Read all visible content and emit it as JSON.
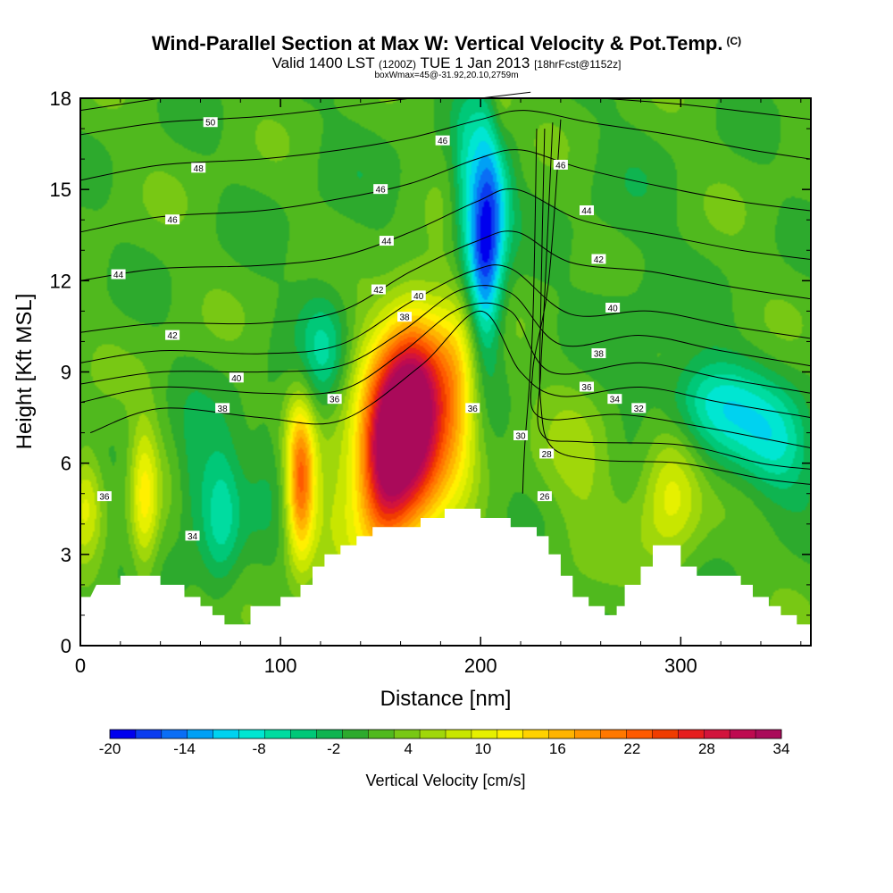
{
  "header": {
    "title": "Wind-Parallel Section at Max W: Vertical Velocity & Pot.Temp.",
    "title_mark": "(C)",
    "valid_prefix": "Valid 1400 LST",
    "valid_utc": "(1200Z)",
    "valid_date": "TUE 1 Jan 2013",
    "forecast": "[18hrFcst@1152z]",
    "box_info": "boxWmax=45@-31.92,20.10,2759m"
  },
  "chart_data": {
    "type": "heatmap",
    "title": "Wind-Parallel Section at Max W: Vertical Velocity & Pot.Temp.",
    "xlabel": "Distance [nm]",
    "ylabel": "Height [Kft MSL]",
    "xlim": [
      0,
      365
    ],
    "ylim": [
      0,
      18
    ],
    "x_ticks": [
      "0",
      "100",
      "200",
      "300"
    ],
    "y_ticks": [
      "0",
      "3",
      "6",
      "9",
      "12",
      "15",
      "18"
    ],
    "colorbar": {
      "label": "Vertical Velocity [cm/s]",
      "ticks": [
        "-20",
        "-14",
        "-8",
        "-2",
        "4",
        "10",
        "16",
        "22",
        "28",
        "34"
      ],
      "range": [
        -20,
        34
      ],
      "colors": [
        "#0000ee",
        "#0a3cf0",
        "#0a6ef5",
        "#00a0f5",
        "#00d2f0",
        "#00e6d2",
        "#00dca0",
        "#00c878",
        "#0fb450",
        "#2daa2d",
        "#50b91e",
        "#78c814",
        "#a0d70a",
        "#c8e600",
        "#e6f000",
        "#fff000",
        "#ffd200",
        "#ffb400",
        "#ff9600",
        "#ff7800",
        "#ff5a00",
        "#f03c00",
        "#e61e1e",
        "#d2143c",
        "#be0a50",
        "#aa0a5a"
      ]
    },
    "terrain_kft": [
      [
        0,
        1.6
      ],
      [
        5,
        1.6
      ],
      [
        8,
        2.0
      ],
      [
        20,
        2.0
      ],
      [
        20,
        2.3
      ],
      [
        40,
        2.3
      ],
      [
        40,
        2.0
      ],
      [
        52,
        2.0
      ],
      [
        52,
        1.6
      ],
      [
        60,
        1.6
      ],
      [
        60,
        1.3
      ],
      [
        66,
        1.3
      ],
      [
        66,
        1.0
      ],
      [
        72,
        1.0
      ],
      [
        72,
        0.7
      ],
      [
        85,
        0.7
      ],
      [
        85,
        1.3
      ],
      [
        100,
        1.3
      ],
      [
        100,
        1.6
      ],
      [
        110,
        1.6
      ],
      [
        110,
        2.0
      ],
      [
        116,
        2.0
      ],
      [
        116,
        2.6
      ],
      [
        122,
        2.6
      ],
      [
        122,
        3.0
      ],
      [
        130,
        3.0
      ],
      [
        130,
        3.3
      ],
      [
        138,
        3.3
      ],
      [
        138,
        3.6
      ],
      [
        146,
        3.6
      ],
      [
        146,
        3.9
      ],
      [
        170,
        3.9
      ],
      [
        170,
        4.2
      ],
      [
        182,
        4.2
      ],
      [
        182,
        4.5
      ],
      [
        200,
        4.5
      ],
      [
        200,
        4.2
      ],
      [
        215,
        4.2
      ],
      [
        215,
        3.9
      ],
      [
        228,
        3.9
      ],
      [
        228,
        3.6
      ],
      [
        234,
        3.6
      ],
      [
        234,
        3.0
      ],
      [
        240,
        3.0
      ],
      [
        240,
        2.3
      ],
      [
        246,
        2.3
      ],
      [
        246,
        1.6
      ],
      [
        254,
        1.6
      ],
      [
        254,
        1.3
      ],
      [
        262,
        1.3
      ],
      [
        262,
        1.0
      ],
      [
        268,
        1.0
      ],
      [
        268,
        1.3
      ],
      [
        272,
        1.3
      ],
      [
        272,
        2.0
      ],
      [
        280,
        2.0
      ],
      [
        280,
        2.6
      ],
      [
        286,
        2.6
      ],
      [
        286,
        3.3
      ],
      [
        300,
        3.3
      ],
      [
        300,
        2.6
      ],
      [
        308,
        2.6
      ],
      [
        308,
        2.3
      ],
      [
        330,
        2.3
      ],
      [
        330,
        2.0
      ],
      [
        336,
        2.0
      ],
      [
        336,
        1.6
      ],
      [
        344,
        1.6
      ],
      [
        344,
        1.3
      ],
      [
        350,
        1.3
      ],
      [
        350,
        1.0
      ],
      [
        358,
        1.0
      ],
      [
        358,
        0.7
      ],
      [
        365,
        0.7
      ]
    ],
    "updrafts": [
      [
        167,
        7.6,
        11,
        2.3,
        33
      ],
      [
        152,
        6.1,
        9,
        2.0,
        22
      ],
      [
        188,
        8.3,
        9,
        2.2,
        13
      ],
      [
        110,
        5.4,
        5,
        1.8,
        19
      ],
      [
        32,
        4.8,
        5,
        1.8,
        10
      ],
      [
        295,
        5.2,
        11,
        1.6,
        10
      ],
      [
        3,
        4.8,
        6,
        1.3,
        8
      ],
      [
        250,
        6.0,
        14,
        2.5,
        4
      ],
      [
        210,
        17.5,
        5,
        1.5,
        9
      ],
      [
        140,
        6.2,
        18,
        3.0,
        7
      ]
    ],
    "downdrafts": [
      [
        202,
        13.0,
        6,
        2.5,
        -19
      ],
      [
        209,
        16.0,
        6,
        2.0,
        -9
      ],
      [
        70,
        4.3,
        7,
        1.8,
        -8
      ],
      [
        122,
        9.5,
        9,
        1.5,
        -8
      ],
      [
        330,
        7.2,
        22,
        1.3,
        -7
      ],
      [
        312,
        8.2,
        16,
        1.0,
        -6
      ],
      [
        192,
        15.0,
        5,
        2.0,
        -6
      ],
      [
        350,
        6.3,
        12,
        1.2,
        -5
      ],
      [
        56,
        5.5,
        6,
        1.6,
        -4
      ],
      [
        95,
        6.3,
        8,
        1.8,
        -3
      ],
      [
        270,
        11.0,
        20,
        4.0,
        -2
      ],
      [
        140,
        14.0,
        30,
        3.0,
        -1
      ]
    ],
    "isentropes": [
      {
        "label": "26",
        "points": [
          [
            228,
            17.0
          ],
          [
            226,
            10.5
          ],
          [
            222,
            6.5
          ],
          [
            221,
            5.0
          ]
        ]
      },
      {
        "label": "28",
        "points": [
          [
            232,
            17.0
          ],
          [
            230,
            11.0
          ],
          [
            230,
            8.0
          ],
          [
            236,
            6.5
          ],
          [
            260,
            6.1
          ],
          [
            300,
            6.0
          ],
          [
            340,
            5.5
          ],
          [
            365,
            5.3
          ]
        ]
      },
      {
        "label": "30",
        "points": [
          [
            236,
            17.2
          ],
          [
            232,
            11.5
          ],
          [
            230,
            9.0
          ],
          [
            230,
            7.0
          ],
          [
            250,
            6.7
          ],
          [
            300,
            6.6
          ],
          [
            340,
            6.0
          ],
          [
            365,
            5.8
          ]
        ]
      },
      {
        "label": "32",
        "points": [
          [
            240,
            17.3
          ],
          [
            234,
            12.0
          ],
          [
            226,
            9.0
          ],
          [
            230,
            7.5
          ],
          [
            270,
            7.6
          ],
          [
            310,
            7.2
          ],
          [
            365,
            6.5
          ]
        ]
      },
      {
        "label": "34",
        "points": [
          [
            5,
            7.0
          ],
          [
            40,
            7.8
          ],
          [
            90,
            7.5
          ],
          [
            130,
            7.4
          ],
          [
            170,
            9.2
          ],
          [
            200,
            11.0
          ],
          [
            220,
            9.0
          ],
          [
            240,
            8.2
          ],
          [
            280,
            8.5
          ],
          [
            320,
            8.0
          ],
          [
            365,
            7.5
          ]
        ]
      },
      {
        "label": "36",
        "points": [
          [
            0,
            8.0
          ],
          [
            40,
            8.5
          ],
          [
            90,
            8.3
          ],
          [
            130,
            8.4
          ],
          [
            160,
            9.6
          ],
          [
            190,
            11.1
          ],
          [
            215,
            11.0
          ],
          [
            235,
            9.0
          ],
          [
            280,
            9.3
          ],
          [
            320,
            8.8
          ],
          [
            365,
            8.3
          ]
        ]
      },
      {
        "label": "38",
        "points": [
          [
            0,
            8.6
          ],
          [
            40,
            9.0
          ],
          [
            90,
            9.0
          ],
          [
            130,
            9.2
          ],
          [
            160,
            10.3
          ],
          [
            190,
            11.7
          ],
          [
            215,
            11.6
          ],
          [
            240,
            9.9
          ],
          [
            280,
            10.2
          ],
          [
            320,
            9.7
          ],
          [
            365,
            9.2
          ]
        ]
      },
      {
        "label": "40",
        "points": [
          [
            0,
            9.3
          ],
          [
            40,
            9.7
          ],
          [
            90,
            9.6
          ],
          [
            130,
            9.9
          ],
          [
            165,
            11.3
          ],
          [
            195,
            12.3
          ],
          [
            215,
            12.4
          ],
          [
            245,
            10.9
          ],
          [
            285,
            11.0
          ],
          [
            325,
            10.5
          ],
          [
            365,
            10.1
          ]
        ]
      },
      {
        "label": "42",
        "points": [
          [
            0,
            10.3
          ],
          [
            40,
            10.6
          ],
          [
            90,
            10.6
          ],
          [
            130,
            11.0
          ],
          [
            165,
            12.3
          ],
          [
            198,
            13.3
          ],
          [
            218,
            13.6
          ],
          [
            245,
            12.6
          ],
          [
            285,
            12.3
          ],
          [
            325,
            11.8
          ],
          [
            365,
            11.4
          ]
        ]
      },
      {
        "label": "44",
        "points": [
          [
            0,
            12.0
          ],
          [
            40,
            12.4
          ],
          [
            90,
            12.5
          ],
          [
            130,
            12.8
          ],
          [
            165,
            13.6
          ],
          [
            198,
            14.6
          ],
          [
            218,
            15.0
          ],
          [
            250,
            14.0
          ],
          [
            290,
            13.5
          ],
          [
            330,
            13.0
          ],
          [
            365,
            12.7
          ]
        ]
      },
      {
        "label": "46",
        "points": [
          [
            0,
            13.6
          ],
          [
            40,
            14.1
          ],
          [
            90,
            14.3
          ],
          [
            130,
            14.7
          ],
          [
            165,
            15.2
          ],
          [
            198,
            16.0
          ],
          [
            220,
            16.3
          ],
          [
            250,
            15.7
          ],
          [
            290,
            15.1
          ],
          [
            330,
            14.6
          ],
          [
            365,
            14.3
          ]
        ]
      },
      {
        "label": "48",
        "points": [
          [
            0,
            15.3
          ],
          [
            40,
            15.8
          ],
          [
            90,
            16.0
          ],
          [
            130,
            16.3
          ],
          [
            165,
            16.7
          ],
          [
            200,
            17.3
          ],
          [
            222,
            17.6
          ],
          [
            255,
            17.2
          ],
          [
            295,
            16.8
          ],
          [
            335,
            16.3
          ],
          [
            365,
            16.0
          ]
        ]
      },
      {
        "label": "50",
        "points": [
          [
            0,
            16.8
          ],
          [
            40,
            17.2
          ],
          [
            90,
            17.4
          ],
          [
            130,
            17.7
          ],
          [
            165,
            18.0
          ]
        ]
      },
      {
        "label": "",
        "points": [
          [
            0,
            17.6
          ],
          [
            40,
            18.0
          ]
        ]
      },
      {
        "label": "",
        "points": [
          [
            200,
            18.0
          ],
          [
            225,
            18.2
          ]
        ]
      },
      {
        "label": "",
        "points": [
          [
            260,
            18.0
          ],
          [
            300,
            17.8
          ],
          [
            340,
            17.5
          ],
          [
            365,
            17.3
          ]
        ]
      }
    ],
    "contour_labels": [
      {
        "text": "50",
        "x": 65,
        "y": 17.2
      },
      {
        "text": "48",
        "x": 59,
        "y": 15.7
      },
      {
        "text": "46",
        "x": 46,
        "y": 14.0
      },
      {
        "text": "44",
        "x": 19,
        "y": 12.2
      },
      {
        "text": "42",
        "x": 46,
        "y": 10.2
      },
      {
        "text": "40",
        "x": 78,
        "y": 8.8
      },
      {
        "text": "38",
        "x": 71,
        "y": 7.8
      },
      {
        "text": "36",
        "x": 12,
        "y": 4.9
      },
      {
        "text": "34",
        "x": 56,
        "y": 3.6
      },
      {
        "text": "36",
        "x": 127,
        "y": 8.1
      },
      {
        "text": "46",
        "x": 181,
        "y": 16.6
      },
      {
        "text": "46",
        "x": 150,
        "y": 15.0
      },
      {
        "text": "44",
        "x": 153,
        "y": 13.3
      },
      {
        "text": "42",
        "x": 149,
        "y": 11.7
      },
      {
        "text": "40",
        "x": 169,
        "y": 11.5
      },
      {
        "text": "38",
        "x": 162,
        "y": 10.8
      },
      {
        "text": "36",
        "x": 196,
        "y": 7.8
      },
      {
        "text": "30",
        "x": 220,
        "y": 6.9
      },
      {
        "text": "28",
        "x": 233,
        "y": 6.3
      },
      {
        "text": "26",
        "x": 232,
        "y": 4.9
      },
      {
        "text": "46",
        "x": 240,
        "y": 15.8
      },
      {
        "text": "44",
        "x": 253,
        "y": 14.3
      },
      {
        "text": "42",
        "x": 259,
        "y": 12.7
      },
      {
        "text": "40",
        "x": 266,
        "y": 11.1
      },
      {
        "text": "38",
        "x": 259,
        "y": 9.6
      },
      {
        "text": "36",
        "x": 253,
        "y": 8.5
      },
      {
        "text": "34",
        "x": 267,
        "y": 8.1
      },
      {
        "text": "32",
        "x": 279,
        "y": 7.8
      }
    ]
  }
}
